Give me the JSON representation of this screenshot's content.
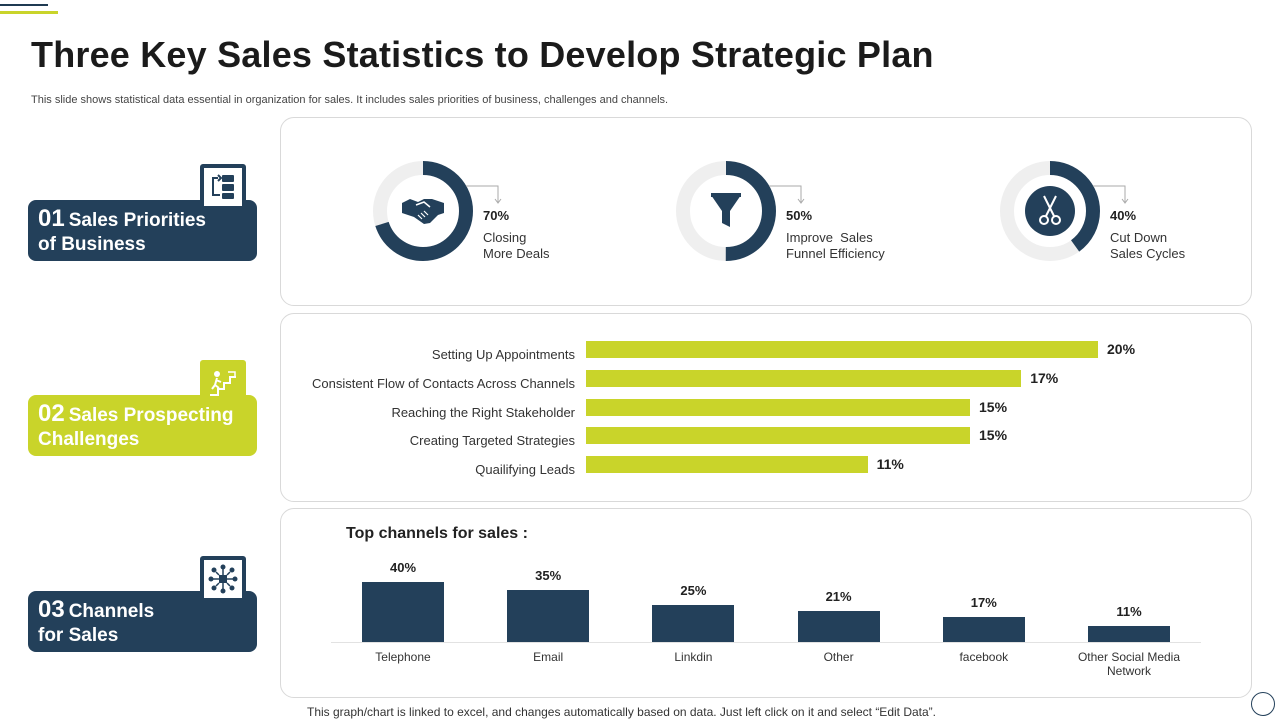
{
  "title": "Three Key Sales Statistics to Develop Strategic Plan",
  "subtitle": "This slide shows statistical data essential in organization for sales. It includes sales priorities of business, challenges and channels.",
  "sections": [
    {
      "num": "01",
      "label": "Sales Priorities of Business",
      "line1": "Sales Priorities",
      "line2": "of Business",
      "icon": "flowchart-icon",
      "color": "#23405a"
    },
    {
      "num": "02",
      "label": "Sales Prospecting Challenges",
      "line1": "Sales Prospecting",
      "line2": "Challenges",
      "icon": "stairs-climb-icon",
      "color": "#c9d42a"
    },
    {
      "num": "03",
      "label": "Channels for Sales",
      "line1": "Channels",
      "line2": "for Sales",
      "icon": "network-icon",
      "color": "#23405a"
    }
  ],
  "colors": {
    "navy": "#23405a",
    "lime": "#c9d42a",
    "ring_bg": "#efefef"
  },
  "chart_data": [
    {
      "type": "pie",
      "title": "",
      "subtype": "donut",
      "items": [
        {
          "value": 70,
          "value_label": "70%",
          "line1": "Closing",
          "line2": "More Deals",
          "icon": "handshake-icon"
        },
        {
          "value": 50,
          "value_label": "50%",
          "line1": "Improve  Sales",
          "line2": "Funnel Efficiency",
          "icon": "funnel-icon"
        },
        {
          "value": 40,
          "value_label": "40%",
          "line1": "Cut Down",
          "line2": "Sales Cycles",
          "icon": "scissors-icon"
        }
      ]
    },
    {
      "type": "bar",
      "orientation": "horizontal",
      "categories": [
        "Setting Up Appointments",
        "Consistent Flow of Contacts Across Channels",
        "Reaching the Right Stakeholder",
        "Creating Targeted Strategies ",
        "Quailifying Leads"
      ],
      "values": [
        20,
        17,
        15,
        15,
        11
      ],
      "value_labels": [
        "20%",
        "17%",
        "15%",
        "15%",
        "11%"
      ],
      "xlim": [
        0,
        20
      ],
      "color": "#c9d42a"
    },
    {
      "type": "bar",
      "title": "Top channels for sales :",
      "categories": [
        "Telephone",
        "Email",
        "Linkdin",
        "Other",
        "facebook",
        "Other Social Media Network"
      ],
      "category_lines": [
        [
          "Telephone"
        ],
        [
          "Email"
        ],
        [
          "Linkdin"
        ],
        [
          "Other"
        ],
        [
          "facebook"
        ],
        [
          "Other Social Media",
          "Network"
        ]
      ],
      "values": [
        40,
        35,
        25,
        21,
        17,
        11
      ],
      "value_labels": [
        "40%",
        "35%",
        "25%",
        "21%",
        "17%",
        "11%"
      ],
      "ylim": [
        0,
        40
      ],
      "color": "#23405a"
    }
  ],
  "footnote": "This graph/chart is linked to excel, and changes automatically based on data. Just left click on it and select “Edit Data”."
}
